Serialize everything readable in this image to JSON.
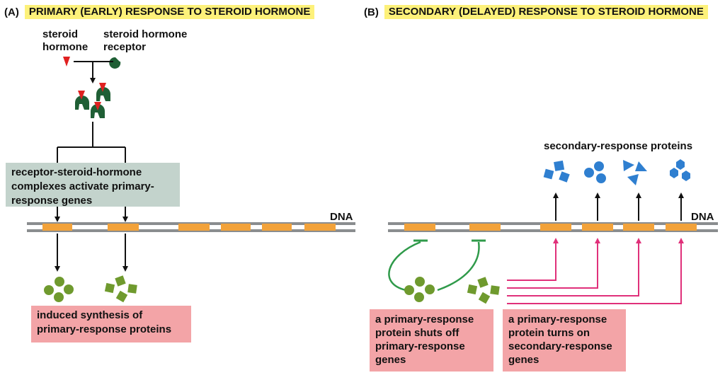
{
  "panel_a": {
    "letter": "(A)",
    "title": "PRIMARY (EARLY) RESPONSE TO STEROID HORMONE",
    "steroid_label": [
      "steroid",
      "hormone"
    ],
    "receptor_label": [
      "steroid hormone",
      "receptor"
    ],
    "activation_text": [
      "receptor-steroid-hormone",
      "complexes activate primary-",
      "response genes"
    ],
    "dna_label": "DNA",
    "synthesis_text": [
      "induced synthesis of",
      "primary-response proteins"
    ]
  },
  "panel_b": {
    "letter": "(B)",
    "title": "SECONDARY (DELAYED) RESPONSE TO STEROID HORMONE",
    "secondary_proteins_label": "secondary-response proteins",
    "dna_label": "DNA",
    "shutoff_text": [
      "a primary-response",
      "protein shuts off",
      "primary-response",
      "genes"
    ],
    "turnon_text": [
      "a primary-response",
      "protein turns on",
      "secondary-response",
      "genes"
    ]
  },
  "colors": {
    "hormone": "#e02020",
    "receptor": "#1f5f35",
    "primary_protein": "#6f9a2e",
    "secondary_protein": "#2f7fd0",
    "gene": "#f2a23a",
    "dna": "#8a8d8f",
    "activation_line": "#e0307a",
    "repression_line": "#2f9a4a",
    "header_highlight": "#fdf17a",
    "gray_box": "#c3d3cc",
    "pink_box": "#f3a4a7"
  }
}
